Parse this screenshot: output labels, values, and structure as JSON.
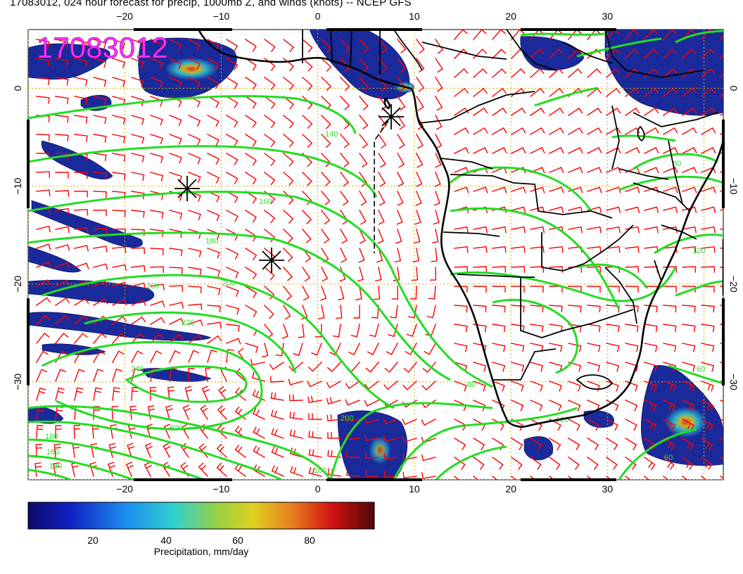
{
  "title": "17083012, 024 hour forecast for precip, 1000mb Z, and winds (knots) -- NCEP GFS",
  "stamp": "17083012",
  "axes": {
    "lon_ticks": [
      "−20",
      "−10",
      "0",
      "10",
      "20",
      "30"
    ],
    "lat_ticks": [
      "0",
      "−10",
      "−20",
      "−30"
    ],
    "lon_range": [
      -30,
      42
    ],
    "lat_range": [
      6,
      -40
    ]
  },
  "contour_labels": [
    "140",
    "160",
    "180",
    "200",
    "200",
    "220",
    "240",
    "220",
    "200",
    "180",
    "160",
    "140",
    "120",
    "80",
    "60",
    "120",
    "80",
    "100",
    "60"
  ],
  "colorbar": {
    "title": "Precipitation, mm/day",
    "ticks": [
      "20",
      "40",
      "60",
      "80"
    ],
    "range": [
      0,
      100
    ]
  },
  "colors": {
    "coast": "#000000",
    "contour": "#22dd22",
    "barb": "#ff0000",
    "grid": "#d4b000",
    "stamp": "#ff33ff"
  },
  "markers": [
    "low-pressure-marker",
    "high-pressure-marker",
    "star-marker"
  ]
}
